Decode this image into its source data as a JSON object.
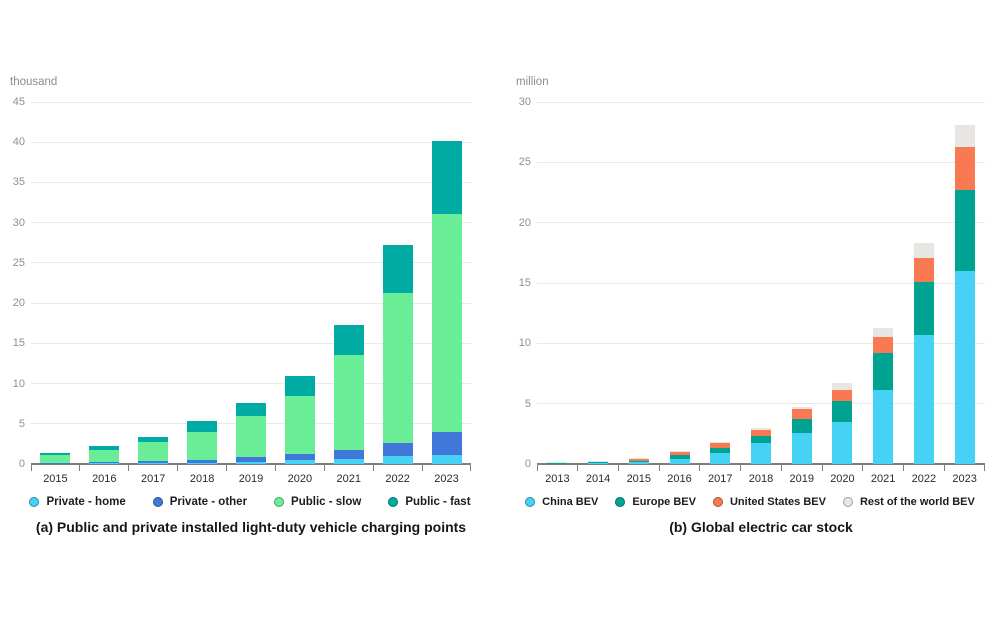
{
  "chart_data": [
    {
      "type": "stacked-bar",
      "title": "(a) Public and private installed light-duty vehicle charging points",
      "unit_label": "thousand",
      "categories": [
        "2015",
        "2016",
        "2017",
        "2018",
        "2019",
        "2020",
        "2021",
        "2022",
        "2023"
      ],
      "series": [
        {
          "name": "Private - home",
          "color": "#45d2f5",
          "values": [
            0.05,
            0.08,
            0.12,
            0.15,
            0.25,
            0.45,
            0.6,
            0.95,
            1.1
          ]
        },
        {
          "name": "Private - other",
          "color": "#4077d8",
          "values": [
            0.1,
            0.17,
            0.23,
            0.35,
            0.65,
            0.85,
            1.2,
            1.65,
            2.9
          ]
        },
        {
          "name": "Public - slow",
          "color": "#69ed96",
          "values": [
            1.0,
            1.55,
            2.35,
            3.5,
            5.1,
            7.1,
            11.7,
            18.6,
            27.1
          ]
        },
        {
          "name": "Public - fast",
          "color": "#00aba3",
          "values": [
            0.25,
            0.4,
            0.6,
            1.3,
            1.6,
            2.5,
            3.8,
            6.0,
            9.0
          ]
        }
      ],
      "totals": [
        1.4,
        2.2,
        3.3,
        5.3,
        7.6,
        10.9,
        17.3,
        27.2,
        40.1
      ],
      "ylim": [
        0,
        45
      ],
      "yticks": [
        0,
        5,
        10,
        15,
        20,
        25,
        30,
        35,
        40,
        45
      ],
      "grid": true,
      "legend_position": "bottom"
    },
    {
      "type": "stacked-bar",
      "title": "(b) Global electric car stock",
      "unit_label": "million",
      "categories": [
        "2013",
        "2014",
        "2015",
        "2016",
        "2017",
        "2018",
        "2019",
        "2020",
        "2021",
        "2022",
        "2023"
      ],
      "series": [
        {
          "name": "China BEV",
          "color": "#45d2f5",
          "values": [
            0.04,
            0.06,
            0.17,
            0.45,
            0.9,
            1.75,
            2.6,
            3.45,
            6.1,
            10.7,
            16.0
          ]
        },
        {
          "name": "Europe BEV",
          "color": "#00a392",
          "values": [
            0.03,
            0.07,
            0.1,
            0.28,
            0.45,
            0.55,
            1.1,
            1.8,
            3.1,
            4.4,
            6.7
          ]
        },
        {
          "name": "United States BEV",
          "color": "#f97a52",
          "values": [
            0.05,
            0.06,
            0.12,
            0.25,
            0.4,
            0.55,
            0.85,
            0.9,
            1.3,
            2.0,
            3.6
          ]
        },
        {
          "name": "Rest of the world BEV",
          "color": "#e8e6e3",
          "values": [
            0.01,
            0.01,
            0.03,
            0.08,
            0.1,
            0.12,
            0.15,
            0.6,
            0.8,
            1.2,
            1.8
          ]
        }
      ],
      "totals": [
        0.13,
        0.2,
        0.42,
        1.06,
        1.85,
        2.97,
        4.7,
        6.75,
        11.3,
        18.3,
        28.1
      ],
      "ylim": [
        0,
        30
      ],
      "yticks": [
        0,
        5,
        10,
        15,
        20,
        25,
        30
      ],
      "grid": true,
      "legend_position": "bottom"
    }
  ]
}
